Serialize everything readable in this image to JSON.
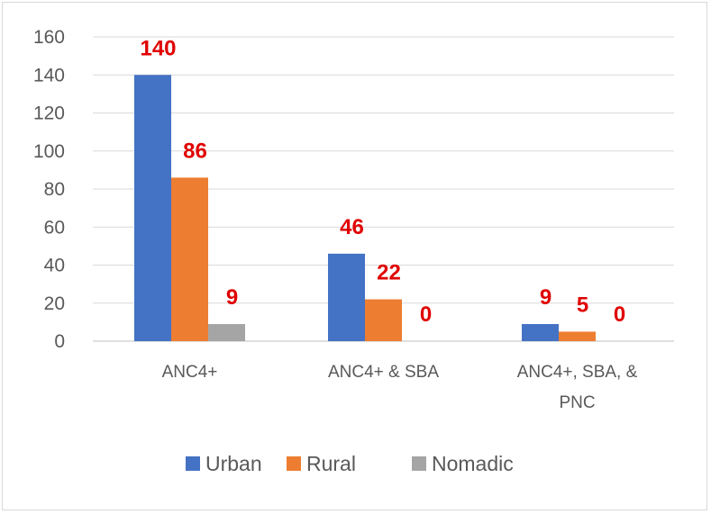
{
  "chart_data": {
    "type": "bar",
    "categories": [
      [
        "ANC4+"
      ],
      [
        "ANC4+ & SBA"
      ],
      [
        "ANC4+, SBA, &",
        "PNC"
      ]
    ],
    "series": [
      {
        "name": "Urban",
        "values": [
          140,
          46,
          9
        ],
        "color": "#4472c4"
      },
      {
        "name": "Rural",
        "values": [
          86,
          22,
          5
        ],
        "color": "#ed7d31"
      },
      {
        "name": "Nomadic",
        "values": [
          9,
          0,
          0
        ],
        "color": "#a5a5a5"
      }
    ],
    "y_ticks": [
      0,
      20,
      40,
      60,
      80,
      100,
      120,
      140,
      160
    ],
    "ylim": [
      0,
      160
    ],
    "grid": true,
    "legend": "bottom",
    "data_label_color": "#e00000"
  }
}
